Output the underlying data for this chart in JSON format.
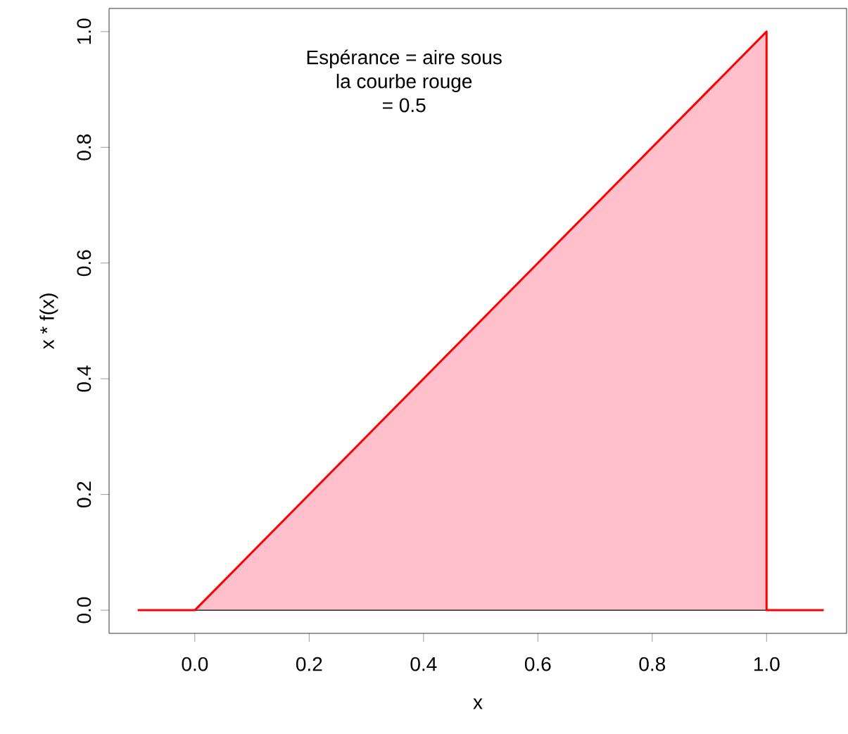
{
  "chart_data": {
    "type": "area",
    "xlabel": "x",
    "ylabel": "x * f(x)",
    "annotations": [
      "Espérance = aire sous",
      "la courbe rouge",
      "= 0.5"
    ],
    "series": [
      {
        "color": "#ffc0cb",
        "x": [
          0,
          1,
          1
        ],
        "values": [
          0,
          1,
          0
        ]
      },
      {
        "type": "line",
        "color": "#ff0000",
        "x": [
          -0.1,
          0,
          1,
          1,
          1.1
        ],
        "values": [
          0,
          0,
          1,
          0,
          0
        ]
      }
    ],
    "xlim": [
      -0.15,
      1.14
    ],
    "ylim": [
      -0.04,
      1.04
    ],
    "xticks": [
      {
        "value": 0,
        "label": "0.0"
      },
      {
        "value": 0.2,
        "label": "0.2"
      },
      {
        "value": 0.4,
        "label": "0.4"
      },
      {
        "value": 0.6,
        "label": "0.6"
      },
      {
        "value": 0.8,
        "label": "0.8"
      },
      {
        "value": 1,
        "label": "1.0"
      }
    ],
    "yticks": [
      {
        "value": 0,
        "label": "0.0"
      },
      {
        "value": 0.2,
        "label": "0.2"
      },
      {
        "value": 0.4,
        "label": "0.4"
      },
      {
        "value": 0.6,
        "label": "0.6"
      },
      {
        "value": 0.8,
        "label": "0.8"
      },
      {
        "value": 1,
        "label": "1.0"
      }
    ],
    "grid": false,
    "line_style": "solid"
  }
}
